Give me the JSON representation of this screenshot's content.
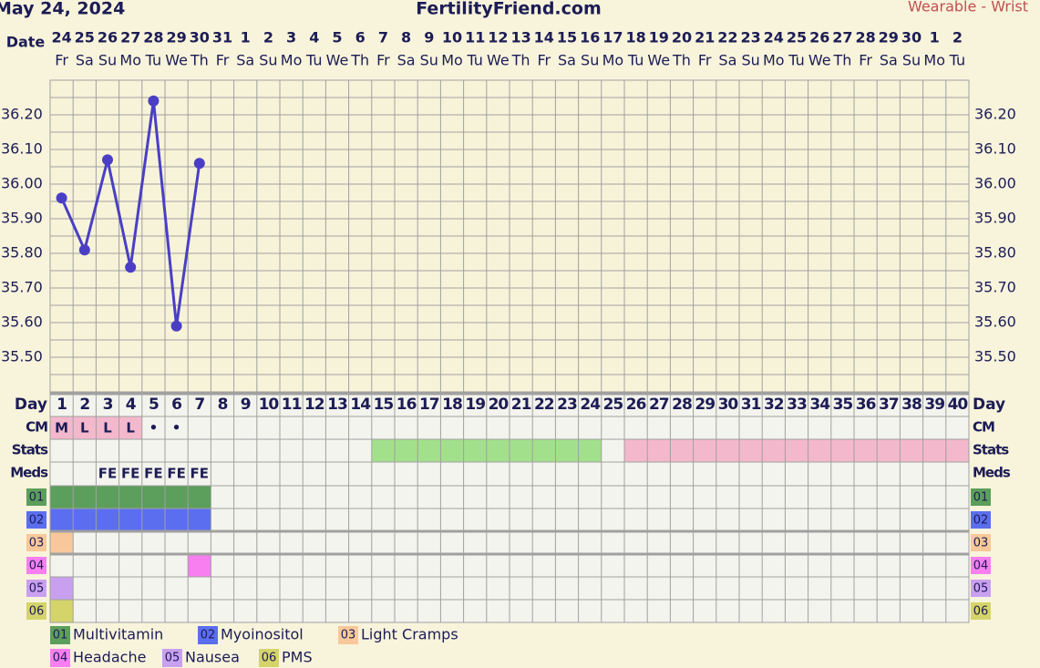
{
  "chart_data": {
    "type": "line",
    "subtitle": "May 24, 2024",
    "title": "FertilityFriend.com",
    "annotation": "Wearable - Wrist",
    "date_header": "Date",
    "dates": [
      "24",
      "25",
      "26",
      "27",
      "28",
      "29",
      "30",
      "31",
      "1",
      "2",
      "3",
      "4",
      "5",
      "6",
      "7",
      "8",
      "9",
      "10",
      "11",
      "12",
      "13",
      "14",
      "15",
      "16",
      "17",
      "18",
      "19",
      "20",
      "21",
      "22",
      "23",
      "24",
      "25",
      "26",
      "27",
      "28",
      "29",
      "30",
      "1",
      "2"
    ],
    "weekdays": [
      "Fr",
      "Sa",
      "Su",
      "Mo",
      "Tu",
      "We",
      "Th",
      "Fr",
      "Sa",
      "Su",
      "Mo",
      "Tu",
      "We",
      "Th",
      "Fr",
      "Sa",
      "Su",
      "Mo",
      "Tu",
      "We",
      "Th",
      "Fr",
      "Sa",
      "Su",
      "Mo",
      "Tu",
      "We",
      "Th",
      "Fr",
      "Sa",
      "Su",
      "Mo",
      "Tu",
      "We",
      "Th",
      "Fr",
      "Sa",
      "Su",
      "Mo",
      "Tu"
    ],
    "x_label": "Day",
    "categories": [
      "1",
      "2",
      "3",
      "4",
      "5",
      "6",
      "7",
      "8",
      "9",
      "10",
      "11",
      "12",
      "13",
      "14",
      "15",
      "16",
      "17",
      "18",
      "19",
      "20",
      "21",
      "22",
      "23",
      "24",
      "25",
      "26",
      "27",
      "28",
      "29",
      "30",
      "31",
      "32",
      "33",
      "34",
      "35",
      "36",
      "37",
      "38",
      "39",
      "40"
    ],
    "series": [
      {
        "name": "Temperature",
        "color": "#4a3fc4",
        "values": [
          35.96,
          35.81,
          36.07,
          35.76,
          36.24,
          35.59,
          36.06,
          null,
          null,
          null,
          null,
          null,
          null,
          null,
          null,
          null,
          null,
          null,
          null,
          null,
          null,
          null,
          null,
          null,
          null,
          null,
          null,
          null,
          null,
          null,
          null,
          null,
          null,
          null,
          null,
          null,
          null,
          null,
          null,
          null
        ]
      }
    ],
    "ylim": [
      35.4,
      36.3
    ],
    "yticks": [
      {
        "value": 35.5,
        "label": "35.50"
      },
      {
        "value": 35.6,
        "label": "35.60"
      },
      {
        "value": 35.7,
        "label": "35.70"
      },
      {
        "value": 35.8,
        "label": "35.80"
      },
      {
        "value": 35.9,
        "label": "35.90"
      },
      {
        "value": 36.0,
        "label": "36.00"
      },
      {
        "value": 36.1,
        "label": "36.10"
      },
      {
        "value": 36.2,
        "label": "36.20"
      }
    ],
    "grid": true,
    "cm_label": "CM",
    "cm": [
      "M",
      "L",
      "L",
      "L",
      "•",
      "•",
      null,
      null,
      null,
      null,
      null,
      null,
      null,
      null,
      null,
      null,
      null,
      null,
      null,
      null,
      null,
      null,
      null,
      null,
      null,
      null,
      null,
      null,
      null,
      null,
      null,
      null,
      null,
      null,
      null,
      null,
      null,
      null,
      null,
      null
    ],
    "cm_color": "#f4b8cc",
    "stats_label": "Stats",
    "stats": [
      {
        "from": 15,
        "to": 24,
        "color": "#a3e08b"
      },
      {
        "from": 26,
        "to": 40,
        "color": "#f4b8cc"
      }
    ],
    "meds_label": "Meds",
    "meds": [
      null,
      null,
      "FE",
      "FE",
      "FE",
      "FE",
      "FE",
      null,
      null,
      null,
      null,
      null,
      null,
      null,
      null,
      null,
      null,
      null,
      null,
      null,
      null,
      null,
      null,
      null,
      null,
      null,
      null,
      null,
      null,
      null,
      null,
      null,
      null,
      null,
      null,
      null,
      null,
      null,
      null,
      null
    ],
    "tracks": [
      {
        "code": "01",
        "name": "Multivitamin",
        "color": "#5c9e5c",
        "days": [
          1,
          2,
          3,
          4,
          5,
          6,
          7
        ]
      },
      {
        "code": "02",
        "name": "Myoinositol",
        "color": "#5b6ef0",
        "days": [
          1,
          2,
          3,
          4,
          5,
          6,
          7
        ]
      },
      {
        "code": "03",
        "name": "Light Cramps",
        "color": "#f8c89a",
        "days": [
          1
        ]
      },
      {
        "code": "04",
        "name": "Headache",
        "color": "#f77ff0",
        "days": [
          7
        ]
      },
      {
        "code": "05",
        "name": "Nausea",
        "color": "#c9a0f0",
        "days": [
          1
        ]
      },
      {
        "code": "06",
        "name": "PMS",
        "color": "#d4d46a",
        "days": [
          1
        ]
      }
    ]
  }
}
